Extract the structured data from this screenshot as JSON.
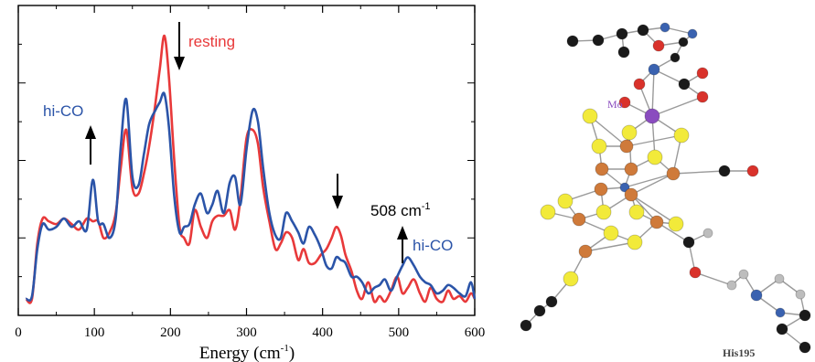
{
  "chart_data": {
    "type": "line",
    "xlabel": "Energy (cm",
    "xlabel_sup": "-1",
    "xlabel_close": ")",
    "xlim": [
      0,
      600
    ],
    "ylim": [
      0,
      1
    ],
    "x_ticks": [
      0,
      100,
      200,
      300,
      400,
      500,
      600
    ],
    "grid": false,
    "y_tick_labels_shown": false,
    "series": [
      {
        "name": "resting",
        "color": "#e8393a",
        "x": [
          10,
          18,
          25,
          32,
          40,
          50,
          60,
          70,
          80,
          90,
          98,
          105,
          112,
          120,
          128,
          135,
          142,
          150,
          158,
          165,
          172,
          180,
          186,
          192,
          198,
          205,
          212,
          218,
          225,
          232,
          240,
          248,
          255,
          262,
          270,
          278,
          285,
          292,
          300,
          308,
          315,
          322,
          330,
          338,
          345,
          352,
          360,
          368,
          375,
          382,
          390,
          398,
          405,
          412,
          418,
          424,
          430,
          438,
          445,
          452,
          460,
          468,
          475,
          482,
          490,
          498,
          505,
          512,
          520,
          528,
          535,
          542,
          550,
          558,
          565,
          572,
          580,
          588,
          595,
          600
        ],
        "y": [
          0.02,
          0.02,
          0.22,
          0.31,
          0.3,
          0.29,
          0.31,
          0.29,
          0.27,
          0.31,
          0.3,
          0.3,
          0.24,
          0.26,
          0.33,
          0.5,
          0.63,
          0.42,
          0.4,
          0.47,
          0.57,
          0.72,
          0.85,
          0.97,
          0.82,
          0.52,
          0.28,
          0.24,
          0.22,
          0.34,
          0.28,
          0.24,
          0.3,
          0.32,
          0.32,
          0.34,
          0.27,
          0.38,
          0.6,
          0.63,
          0.58,
          0.42,
          0.3,
          0.2,
          0.22,
          0.26,
          0.24,
          0.16,
          0.2,
          0.15,
          0.15,
          0.18,
          0.2,
          0.24,
          0.28,
          0.25,
          0.18,
          0.12,
          0.05,
          0.02,
          0.08,
          0.01,
          0.03,
          0.01,
          0.05,
          0.1,
          0.04,
          0.06,
          0.09,
          0.04,
          0.01,
          0.06,
          0.02,
          0.01,
          0.05,
          0.02,
          0.03,
          0.01,
          0.04,
          0.02
        ]
      },
      {
        "name": "hi-CO",
        "color": "#2b54a8",
        "x": [
          10,
          18,
          25,
          32,
          40,
          50,
          60,
          70,
          80,
          90,
          98,
          105,
          112,
          120,
          128,
          135,
          142,
          150,
          158,
          165,
          172,
          180,
          186,
          192,
          198,
          205,
          212,
          218,
          225,
          232,
          240,
          248,
          255,
          262,
          270,
          278,
          285,
          292,
          300,
          308,
          315,
          322,
          330,
          338,
          345,
          352,
          360,
          368,
          375,
          382,
          390,
          398,
          405,
          412,
          418,
          424,
          430,
          438,
          445,
          452,
          460,
          468,
          475,
          482,
          490,
          498,
          505,
          512,
          520,
          528,
          535,
          542,
          550,
          558,
          565,
          572,
          580,
          588,
          595,
          600
        ],
        "y": [
          0.02,
          0.03,
          0.2,
          0.29,
          0.27,
          0.28,
          0.31,
          0.28,
          0.3,
          0.27,
          0.45,
          0.3,
          0.29,
          0.24,
          0.31,
          0.58,
          0.74,
          0.46,
          0.43,
          0.54,
          0.65,
          0.7,
          0.73,
          0.76,
          0.64,
          0.39,
          0.26,
          0.28,
          0.29,
          0.36,
          0.4,
          0.33,
          0.36,
          0.41,
          0.33,
          0.44,
          0.46,
          0.36,
          0.56,
          0.7,
          0.66,
          0.49,
          0.33,
          0.25,
          0.24,
          0.33,
          0.3,
          0.26,
          0.22,
          0.28,
          0.25,
          0.2,
          0.14,
          0.13,
          0.17,
          0.16,
          0.15,
          0.1,
          0.1,
          0.08,
          0.04,
          0.06,
          0.07,
          0.09,
          0.05,
          0.1,
          0.14,
          0.17,
          0.14,
          0.1,
          0.08,
          0.07,
          0.04,
          0.05,
          0.07,
          0.06,
          0.04,
          0.03,
          0.08,
          0.02
        ]
      }
    ],
    "annotations": [
      {
        "text": "resting",
        "color": "#e8393a",
        "arrow": "down",
        "x": 214
      },
      {
        "text": "hi-CO",
        "color": "#2b54a8",
        "arrow": "up",
        "x": 98
      },
      {
        "text": "",
        "color": "#2b54a8",
        "arrow": "down",
        "x": 424
      },
      {
        "text": "508 cm",
        "sup": "-1",
        "color": "#000000",
        "arrow": "up",
        "x": 508
      },
      {
        "text": "hi-CO",
        "color": "#2b54a8"
      }
    ]
  },
  "structure_labels": {
    "metal": "Mo",
    "metal_color": "#8a4cbf",
    "residue": "His195"
  }
}
